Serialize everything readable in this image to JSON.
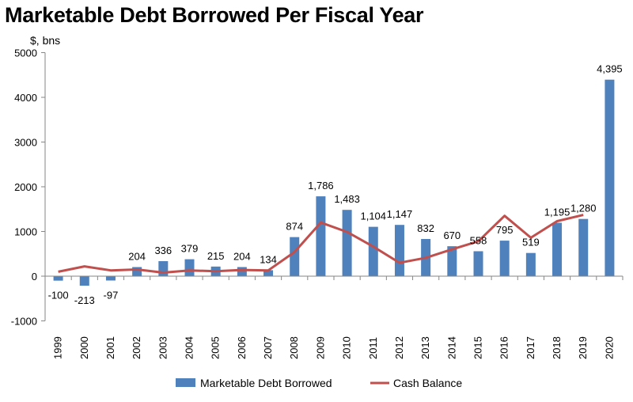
{
  "chart_data": {
    "type": "bar",
    "title": "Marketable Debt Borrowed Per Fiscal Year",
    "ylabel": "$, bns",
    "xlabel": "",
    "ylim": [
      -1000,
      5000
    ],
    "yticks": [
      -1000,
      0,
      1000,
      2000,
      3000,
      4000,
      5000
    ],
    "grid": false,
    "legend": "bottom",
    "categories": [
      "1999",
      "2000",
      "2001",
      "2002",
      "2003",
      "2004",
      "2005",
      "2006",
      "2007",
      "2008",
      "2009",
      "2010",
      "2011",
      "2012",
      "2013",
      "2014",
      "2015",
      "2016",
      "2017",
      "2018",
      "2019",
      "2020"
    ],
    "series": [
      {
        "name": "Marketable Debt Borrowed",
        "type": "bar",
        "color": "#4f81bd",
        "values": [
          -100,
          -213,
          -97,
          204,
          336,
          379,
          215,
          204,
          134,
          874,
          1786,
          1483,
          1104,
          1147,
          832,
          670,
          558,
          795,
          519,
          1195,
          1280,
          4395
        ],
        "labels": [
          "-100",
          "-213",
          "-97",
          "204",
          "336",
          "379",
          "215",
          "204",
          "134",
          "874",
          "1,786",
          "1,483",
          "1,104",
          "1,147",
          "832",
          "670",
          "558",
          "795",
          "519",
          "1,195",
          "1,280",
          "4,395"
        ]
      },
      {
        "name": "Cash Balance",
        "type": "line",
        "color": "#c0504d",
        "values": [
          100,
          220,
          130,
          150,
          80,
          130,
          110,
          140,
          130,
          540,
          1200,
          990,
          660,
          300,
          410,
          600,
          780,
          1350,
          860,
          1230,
          1370,
          null
        ]
      }
    ]
  }
}
